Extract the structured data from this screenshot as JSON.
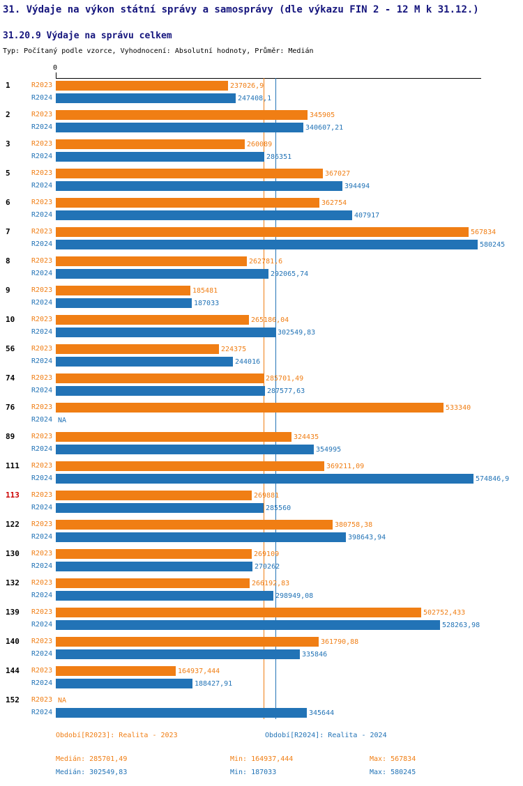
{
  "header": {
    "title": "31. Výdaje na výkon státní správy a samosprávy (dle výkazu FIN 2 - 12 M k 31.12.)",
    "subtitle": "31.20.9 Výdaje na správu celkem",
    "meta": "Typ: Počítaný podle vzorce, Vyhodnocení: Absolutní hodnoty, Průměr: Medián"
  },
  "chart_data": {
    "type": "bar",
    "orientation": "horizontal",
    "x_axis": {
      "zero_label": "0",
      "xlim": [
        0,
        585000
      ]
    },
    "grid": false,
    "legend_position": "bottom",
    "na_label": "NA",
    "highlight_color": "#cc0000",
    "series": [
      {
        "name": "R2023",
        "color": "#f07e14",
        "median": 285701.49
      },
      {
        "name": "R2024",
        "color": "#2273b6",
        "median": 302549.83
      }
    ],
    "groups": [
      {
        "id": "1",
        "highlight": false,
        "bars": [
          {
            "value": 237026.9,
            "label": "237026,9"
          },
          {
            "value": 247408.1,
            "label": "247408,1"
          }
        ]
      },
      {
        "id": "2",
        "highlight": false,
        "bars": [
          {
            "value": 345905,
            "label": "345905"
          },
          {
            "value": 340607.21,
            "label": "340607,21"
          }
        ]
      },
      {
        "id": "3",
        "highlight": false,
        "bars": [
          {
            "value": 260089,
            "label": "260089"
          },
          {
            "value": 286351,
            "label": "286351"
          }
        ]
      },
      {
        "id": "5",
        "highlight": false,
        "bars": [
          {
            "value": 367027,
            "label": "367027"
          },
          {
            "value": 394494,
            "label": "394494"
          }
        ]
      },
      {
        "id": "6",
        "highlight": false,
        "bars": [
          {
            "value": 362754,
            "label": "362754"
          },
          {
            "value": 407917,
            "label": "407917"
          }
        ]
      },
      {
        "id": "7",
        "highlight": false,
        "bars": [
          {
            "value": 567834,
            "label": "567834"
          },
          {
            "value": 580245,
            "label": "580245"
          }
        ]
      },
      {
        "id": "8",
        "highlight": false,
        "bars": [
          {
            "value": 262781.6,
            "label": "262781,6"
          },
          {
            "value": 292065.74,
            "label": "292065,74"
          }
        ]
      },
      {
        "id": "9",
        "highlight": false,
        "bars": [
          {
            "value": 185481,
            "label": "185481"
          },
          {
            "value": 187033,
            "label": "187033"
          }
        ]
      },
      {
        "id": "10",
        "highlight": false,
        "bars": [
          {
            "value": 265186.04,
            "label": "265186,04"
          },
          {
            "value": 302549.83,
            "label": "302549,83"
          }
        ]
      },
      {
        "id": "56",
        "highlight": false,
        "bars": [
          {
            "value": 224375,
            "label": "224375"
          },
          {
            "value": 244016,
            "label": "244016"
          }
        ]
      },
      {
        "id": "74",
        "highlight": false,
        "bars": [
          {
            "value": 285701.49,
            "label": "285701,49"
          },
          {
            "value": 287577.63,
            "label": "287577,63"
          }
        ]
      },
      {
        "id": "76",
        "highlight": false,
        "bars": [
          {
            "value": 533340,
            "label": "533340"
          },
          {
            "value": null,
            "label": "NA"
          }
        ]
      },
      {
        "id": "89",
        "highlight": false,
        "bars": [
          {
            "value": 324435,
            "label": "324435"
          },
          {
            "value": 354995,
            "label": "354995"
          }
        ]
      },
      {
        "id": "111",
        "highlight": false,
        "bars": [
          {
            "value": 369211.09,
            "label": "369211,09"
          },
          {
            "value": 574846.9,
            "label": "574846,9"
          }
        ]
      },
      {
        "id": "113",
        "highlight": true,
        "bars": [
          {
            "value": 269881,
            "label": "269881"
          },
          {
            "value": 285560,
            "label": "285560"
          }
        ]
      },
      {
        "id": "122",
        "highlight": false,
        "bars": [
          {
            "value": 380758.38,
            "label": "380758,38"
          },
          {
            "value": 398643.94,
            "label": "398643,94"
          }
        ]
      },
      {
        "id": "130",
        "highlight": false,
        "bars": [
          {
            "value": 269109,
            "label": "269109"
          },
          {
            "value": 270262,
            "label": "270262"
          }
        ]
      },
      {
        "id": "132",
        "highlight": false,
        "bars": [
          {
            "value": 266192.83,
            "label": "266192,83"
          },
          {
            "value": 298949.08,
            "label": "298949,08"
          }
        ]
      },
      {
        "id": "139",
        "highlight": false,
        "bars": [
          {
            "value": 502752.433,
            "label": "502752,433"
          },
          {
            "value": 528263.98,
            "label": "528263,98"
          }
        ]
      },
      {
        "id": "140",
        "highlight": false,
        "bars": [
          {
            "value": 361790.88,
            "label": "361790,88"
          },
          {
            "value": 335846,
            "label": "335846"
          }
        ]
      },
      {
        "id": "144",
        "highlight": false,
        "bars": [
          {
            "value": 164937.444,
            "label": "164937,444"
          },
          {
            "value": 188427.91,
            "label": "188427,91"
          }
        ]
      },
      {
        "id": "152",
        "highlight": false,
        "bars": [
          {
            "value": null,
            "label": "NA"
          },
          {
            "value": 345644,
            "label": "345644"
          }
        ]
      }
    ]
  },
  "legend": {
    "r2023": "Období[R2023]: Realita - 2023",
    "r2024": "Období[R2024]: Realita - 2024"
  },
  "stats": {
    "r2023": {
      "median": "Medián: 285701,49",
      "min": "Min: 164937,444",
      "max": "Max: 567834"
    },
    "r2024": {
      "median": "Medián: 302549,83",
      "min": "Min: 187033",
      "max": "Max: 580245"
    }
  }
}
